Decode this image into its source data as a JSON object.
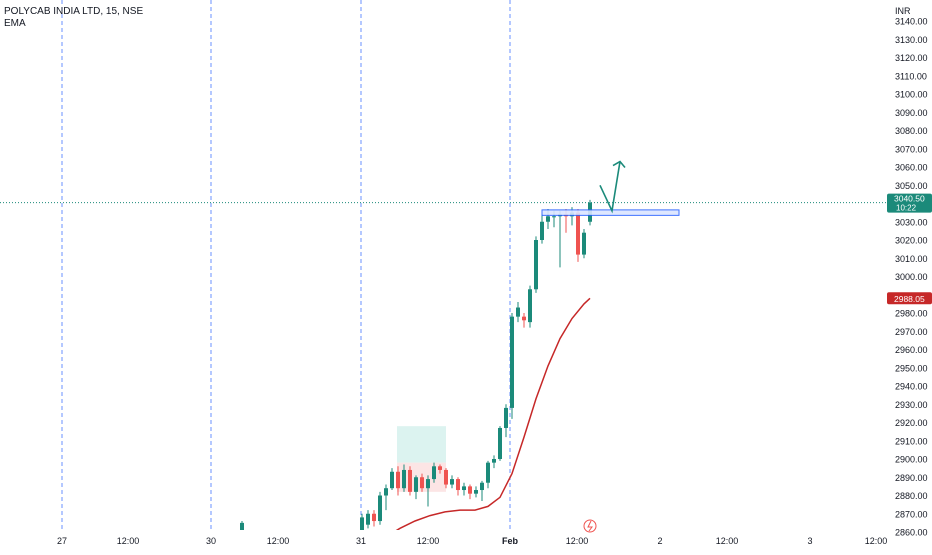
{
  "header": {
    "symbol_line": "POLYCAB INDIA LTD, 15, NSE",
    "indicator": "EMA"
  },
  "price_scale": {
    "currency": "INR",
    "last_price": "3040.50",
    "countdown": "10:22",
    "ema_value": "2988.05"
  },
  "colors": {
    "up": "#26a69a",
    "up_body": "#1b8a7a",
    "down": "#ef5350",
    "ema": "#c62828",
    "grid_vertical": "#2962ff",
    "price_line": "#1b8a7a",
    "zone_box": "#2962ff",
    "arrow": "#1b8a7a",
    "highlight_green": "#cdeee9",
    "highlight_red": "#fbdada"
  },
  "chart_data": {
    "type": "candlestick",
    "title": "POLYCAB INDIA LTD, 15, NSE",
    "xlabel": "",
    "ylabel": "INR",
    "ylim": [
      2859,
      3148
    ],
    "y_ticks": [
      "3140.00",
      "3130.00",
      "3120.00",
      "3110.00",
      "3100.00",
      "3090.00",
      "3080.00",
      "3070.00",
      "3060.00",
      "3050.00",
      "3040.00",
      "3030.00",
      "3020.00",
      "3010.00",
      "3000.00",
      "2990.00",
      "2980.00",
      "2970.00",
      "2960.00",
      "2950.00",
      "2940.00",
      "2930.00",
      "2920.00",
      "2910.00",
      "2900.00",
      "2890.00",
      "2880.00",
      "2870.00",
      "2860.00"
    ],
    "x_ticks": [
      "27",
      "12:00",
      "30",
      "12:00",
      "31",
      "12:00",
      "Feb",
      "12:00",
      "2",
      "12:00",
      "3",
      "12:00"
    ],
    "session_separators": [
      "27",
      "30",
      "31",
      "Feb"
    ],
    "grid": false,
    "candles": [
      {
        "x": 242,
        "o": 2860,
        "c": 2865,
        "h": 2866,
        "l": 2859
      },
      {
        "x": 362,
        "o": 2859,
        "c": 2868,
        "h": 2870,
        "l": 2857
      },
      {
        "x": 368,
        "o": 2864,
        "c": 2870,
        "h": 2872,
        "l": 2862
      },
      {
        "x": 374,
        "o": 2870,
        "c": 2866,
        "h": 2872,
        "l": 2863
      },
      {
        "x": 380,
        "o": 2866,
        "c": 2880,
        "h": 2882,
        "l": 2864
      },
      {
        "x": 386,
        "o": 2880,
        "c": 2884,
        "h": 2886,
        "l": 2872
      },
      {
        "x": 392,
        "o": 2884,
        "c": 2893,
        "h": 2895,
        "l": 2883
      },
      {
        "x": 398,
        "o": 2893,
        "c": 2884,
        "h": 2896,
        "l": 2880
      },
      {
        "x": 404,
        "o": 2884,
        "c": 2894,
        "h": 2897,
        "l": 2882
      },
      {
        "x": 410,
        "o": 2894,
        "c": 2882,
        "h": 2896,
        "l": 2880
      },
      {
        "x": 416,
        "o": 2882,
        "c": 2890,
        "h": 2891,
        "l": 2878
      },
      {
        "x": 422,
        "o": 2890,
        "c": 2884,
        "h": 2892,
        "l": 2882
      },
      {
        "x": 428,
        "o": 2884,
        "c": 2889,
        "h": 2891,
        "l": 2874
      },
      {
        "x": 434,
        "o": 2889,
        "c": 2896,
        "h": 2898,
        "l": 2887
      },
      {
        "x": 440,
        "o": 2896,
        "c": 2894,
        "h": 2897,
        "l": 2892
      },
      {
        "x": 446,
        "o": 2894,
        "c": 2886,
        "h": 2895,
        "l": 2884
      },
      {
        "x": 452,
        "o": 2886,
        "c": 2889,
        "h": 2891,
        "l": 2884
      },
      {
        "x": 458,
        "o": 2889,
        "c": 2883,
        "h": 2890,
        "l": 2880
      },
      {
        "x": 464,
        "o": 2883,
        "c": 2885,
        "h": 2887,
        "l": 2880
      },
      {
        "x": 470,
        "o": 2885,
        "c": 2881,
        "h": 2886,
        "l": 2878
      },
      {
        "x": 476,
        "o": 2881,
        "c": 2883,
        "h": 2885,
        "l": 2879
      },
      {
        "x": 482,
        "o": 2883,
        "c": 2887,
        "h": 2888,
        "l": 2877
      },
      {
        "x": 488,
        "o": 2887,
        "c": 2898,
        "h": 2899,
        "l": 2884
      },
      {
        "x": 494,
        "o": 2898,
        "c": 2900,
        "h": 2902,
        "l": 2895
      },
      {
        "x": 500,
        "o": 2900,
        "c": 2917,
        "h": 2918,
        "l": 2899
      },
      {
        "x": 506,
        "o": 2917,
        "c": 2928,
        "h": 2930,
        "l": 2912
      },
      {
        "x": 512,
        "o": 2928,
        "c": 2978,
        "h": 2980,
        "l": 2922
      },
      {
        "x": 518,
        "o": 2978,
        "c": 2983,
        "h": 2986,
        "l": 2975
      },
      {
        "x": 524,
        "o": 2978,
        "c": 2976,
        "h": 2980,
        "l": 2972
      },
      {
        "x": 530,
        "o": 2975,
        "c": 2993,
        "h": 2995,
        "l": 2972
      },
      {
        "x": 536,
        "o": 2993,
        "c": 3020,
        "h": 3022,
        "l": 2991
      },
      {
        "x": 542,
        "o": 3020,
        "c": 3030,
        "h": 3034,
        "l": 3018
      },
      {
        "x": 548,
        "o": 3030,
        "c": 3033,
        "h": 3037,
        "l": 3026
      },
      {
        "x": 554,
        "o": 3033,
        "c": 3033,
        "h": 3036,
        "l": 3027
      },
      {
        "x": 560,
        "o": 3033,
        "c": 3034,
        "h": 3036,
        "l": 3005
      },
      {
        "x": 566,
        "o": 3034,
        "c": 3033,
        "h": 3037,
        "l": 3024
      },
      {
        "x": 572,
        "o": 3033,
        "c": 3035,
        "h": 3038,
        "l": 3028
      },
      {
        "x": 578,
        "o": 3035,
        "c": 3012,
        "h": 3037,
        "l": 3008
      },
      {
        "x": 584,
        "o": 3012,
        "c": 3024,
        "h": 3026,
        "l": 3010
      },
      {
        "x": 590,
        "o": 3030,
        "c": 3040.5,
        "h": 3042,
        "l": 3028
      }
    ],
    "ema": [
      {
        "x": 388,
        "y": 2858
      },
      {
        "x": 400,
        "y": 2862
      },
      {
        "x": 415,
        "y": 2866
      },
      {
        "x": 430,
        "y": 2869
      },
      {
        "x": 445,
        "y": 2871
      },
      {
        "x": 460,
        "y": 2872
      },
      {
        "x": 475,
        "y": 2872
      },
      {
        "x": 488,
        "y": 2874
      },
      {
        "x": 500,
        "y": 2879
      },
      {
        "x": 512,
        "y": 2892
      },
      {
        "x": 524,
        "y": 2912
      },
      {
        "x": 536,
        "y": 2933
      },
      {
        "x": 548,
        "y": 2951
      },
      {
        "x": 560,
        "y": 2966
      },
      {
        "x": 572,
        "y": 2977
      },
      {
        "x": 584,
        "y": 2985
      },
      {
        "x": 590,
        "y": 2988.05
      }
    ],
    "zone": {
      "x1": 542,
      "x2": 679,
      "y1": 3033.5,
      "y2": 3036.5
    },
    "arrow": [
      {
        "x": 600,
        "y": 3050
      },
      {
        "x": 612,
        "y": 3036
      },
      {
        "x": 620,
        "y": 3063
      }
    ],
    "shaded_boxes": [
      {
        "x1": 397,
        "x2": 446,
        "y1": 2898,
        "y2": 2918,
        "color": "highlight_green"
      },
      {
        "x1": 397,
        "x2": 446,
        "y1": 2882,
        "y2": 2898,
        "color": "highlight_red"
      }
    ]
  }
}
